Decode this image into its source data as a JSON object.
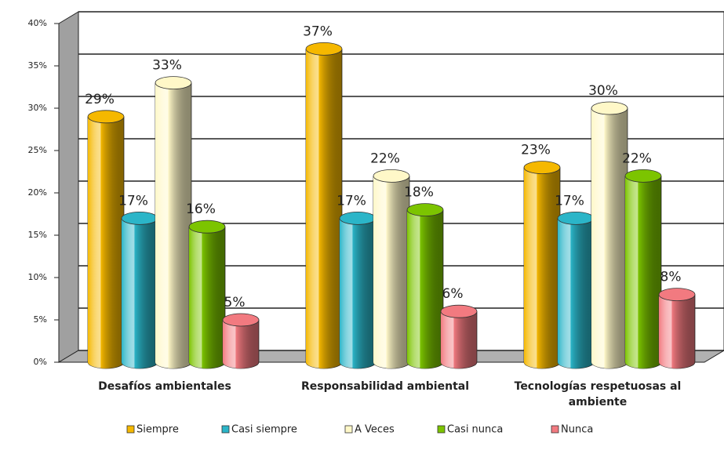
{
  "chart_data": {
    "type": "bar3d",
    "categories": [
      "Desafíos ambientales",
      "Responsabilidad ambiental",
      "Tecnologías respetuosas al ambiente"
    ],
    "series": [
      {
        "name": "Siempre",
        "color": "#f5b800",
        "values": [
          29,
          37,
          23
        ],
        "value_labels": [
          "29%",
          "37%",
          "23%"
        ]
      },
      {
        "name": "Casi siempre",
        "color": "#2bb5c8",
        "values": [
          17,
          17,
          17
        ],
        "value_labels": [
          "17%",
          "17%",
          "17%"
        ]
      },
      {
        "name": "A Veces",
        "color": "#fff8c8",
        "values": [
          33,
          22,
          30
        ],
        "value_labels": [
          "33%",
          "22%",
          "30%"
        ]
      },
      {
        "name": "Casi nunca",
        "color": "#7cc400",
        "values": [
          16,
          18,
          22
        ],
        "value_labels": [
          "16%",
          "18%",
          "22%"
        ]
      },
      {
        "name": "Nunca",
        "color": "#f27a80",
        "values": [
          5,
          6,
          8
        ],
        "value_labels": [
          "5%",
          "6%",
          "8%"
        ]
      }
    ],
    "ylim": [
      0,
      40
    ],
    "yticks": [
      {
        "value": 0,
        "label": "0%"
      },
      {
        "value": 5,
        "label": "5%"
      },
      {
        "value": 10,
        "label": "10%"
      },
      {
        "value": 15,
        "label": "15%"
      },
      {
        "value": 20,
        "label": "20%"
      },
      {
        "value": 25,
        "label": "25%"
      },
      {
        "value": 30,
        "label": "30%"
      },
      {
        "value": 35,
        "label": "35%"
      },
      {
        "value": 40,
        "label": "40%"
      }
    ],
    "grid": true,
    "legend": "bottom"
  }
}
